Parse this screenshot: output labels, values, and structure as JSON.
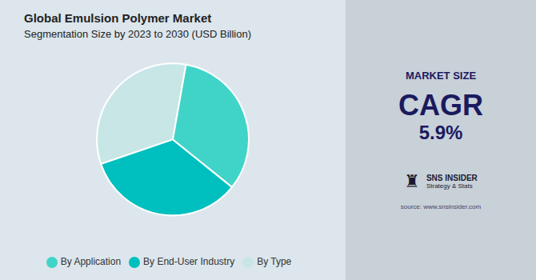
{
  "chart_data": {
    "type": "pie",
    "title": "Global Emulsion Polymer Market",
    "subtitle": "Segmentation Size by 2023 to 2030 (USD Billion)",
    "categories": [
      "By Type",
      "By End-User Industry",
      "By Application"
    ],
    "values": [
      33,
      34,
      33
    ],
    "colors": [
      "#c8e6e6",
      "#00bfbf",
      "#40d4c8"
    ],
    "legend": "bottom",
    "annotations": [
      "MARKET SIZE",
      "CAGR",
      "5.9%",
      "♜",
      "SNS INSIDER",
      "Strategy & Stats",
      "source: www.snsinsider.com"
    ]
  }
}
